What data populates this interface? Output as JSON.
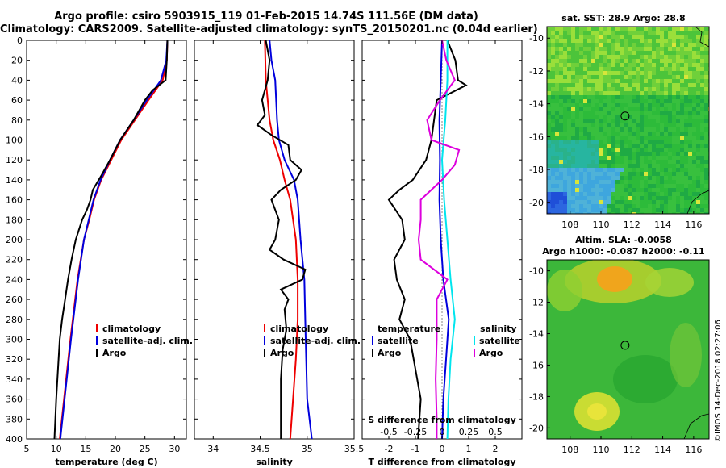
{
  "title_line1": "Argo profile: csiro 5903915_119 01-Feb-2015 14.74S 111.56E (DM data)",
  "title_line2": "Climatology: CARS2009. Satellite-adjusted climatology: synTS_20150201.nc (0.04d earlier)",
  "depth_ticks": [
    0,
    20,
    40,
    60,
    80,
    100,
    120,
    140,
    160,
    180,
    200,
    220,
    240,
    260,
    280,
    300,
    320,
    340,
    360,
    380,
    400
  ],
  "colors": {
    "climatology": "#ee0000",
    "satellite": "#0000dd",
    "argo": "#000000",
    "salinity_sat": "#00e5ee",
    "salinity_argo": "#dd00dd"
  },
  "chart_data": [
    {
      "type": "line",
      "name": "temperature-profile",
      "xlabel": "temperature (deg C)",
      "ylabel": "",
      "xlim": [
        5,
        32
      ],
      "ylim": [
        400,
        0
      ],
      "xticks": [
        5,
        10,
        15,
        20,
        25,
        30
      ],
      "legend": [
        "climatology",
        "satellite-adj. clim.",
        "Argo"
      ],
      "series": [
        {
          "name": "climatology",
          "depth": [
            0,
            20,
            40,
            60,
            80,
            100,
            120,
            140,
            160,
            180,
            200,
            240,
            300,
            400
          ],
          "values": [
            28.8,
            28.7,
            28.0,
            25.6,
            23.3,
            21.0,
            19.3,
            17.6,
            16.4,
            15.6,
            14.7,
            13.6,
            12.4,
            10.6
          ]
        },
        {
          "name": "satellite-adj. clim.",
          "depth": [
            0,
            20,
            40,
            60,
            80,
            100,
            120,
            140,
            160,
            180,
            200,
            240,
            300,
            400
          ],
          "values": [
            28.8,
            28.6,
            27.7,
            25.3,
            23.1,
            20.8,
            19.1,
            17.5,
            16.3,
            15.5,
            14.7,
            13.7,
            12.5,
            10.7
          ]
        },
        {
          "name": "Argo",
          "depth": [
            0,
            20,
            40,
            50,
            60,
            80,
            100,
            120,
            135,
            150,
            160,
            170,
            180,
            200,
            220,
            240,
            260,
            280,
            300,
            330,
            360,
            400
          ],
          "values": [
            28.8,
            28.7,
            28.5,
            26.3,
            25.0,
            23.1,
            20.8,
            19.1,
            17.7,
            16.2,
            15.8,
            15.2,
            14.4,
            13.3,
            12.6,
            12.0,
            11.5,
            11.0,
            10.6,
            10.3,
            10.0,
            9.7
          ]
        }
      ]
    },
    {
      "type": "line",
      "name": "salinity-profile",
      "xlabel": "salinity",
      "ylabel": "",
      "xlim": [
        33.8,
        35.5
      ],
      "ylim": [
        400,
        0
      ],
      "xticks": [
        34,
        34.5,
        35,
        35.5
      ],
      "legend": [
        "climatology",
        "satellite-adj. clim.",
        "Argo"
      ],
      "series": [
        {
          "name": "climatology",
          "depth": [
            0,
            40,
            80,
            100,
            120,
            140,
            160,
            200,
            240,
            280,
            320,
            360,
            400
          ],
          "values": [
            34.55,
            34.56,
            34.6,
            34.64,
            34.71,
            34.76,
            34.82,
            34.88,
            34.9,
            34.9,
            34.88,
            34.85,
            34.82
          ]
        },
        {
          "name": "satellite-adj. clim.",
          "depth": [
            0,
            20,
            40,
            80,
            100,
            120,
            140,
            160,
            200,
            240,
            280,
            320,
            360,
            400
          ],
          "values": [
            34.6,
            34.62,
            34.66,
            34.68,
            34.7,
            34.76,
            34.86,
            34.9,
            34.93,
            34.97,
            34.98,
            34.99,
            35.0,
            35.05
          ]
        },
        {
          "name": "Argo",
          "depth": [
            0,
            20,
            40,
            60,
            75,
            85,
            95,
            105,
            120,
            130,
            140,
            150,
            160,
            180,
            200,
            210,
            220,
            230,
            240,
            250,
            260,
            270,
            290,
            310,
            340,
            370,
            400
          ],
          "values": [
            34.56,
            34.6,
            34.58,
            34.52,
            34.55,
            34.47,
            34.62,
            34.8,
            34.82,
            34.94,
            34.88,
            34.72,
            34.62,
            34.7,
            34.66,
            34.6,
            34.75,
            34.98,
            34.95,
            34.72,
            34.8,
            34.76,
            34.78,
            34.74,
            34.72,
            34.72,
            34.72
          ]
        }
      ]
    },
    {
      "type": "line",
      "name": "difference-profile",
      "xlabel": "T difference from climatology",
      "top_xlabel": "S difference from climatology",
      "xlim": [
        -3,
        3
      ],
      "ylim": [
        400,
        0
      ],
      "xticks": [
        -2,
        -1,
        0,
        1,
        2
      ],
      "top_xticks": [
        "-0.5",
        "-0.25",
        "0",
        "0.25",
        "0.5"
      ],
      "legend_temperature_title": "temperature",
      "legend_salinity_title": "salinity",
      "legend": [
        "satellite",
        "Argo"
      ],
      "series": [
        {
          "name": "temperature satellite",
          "depth": [
            0,
            40,
            80,
            120,
            160,
            200,
            240,
            280,
            320,
            360,
            400
          ],
          "values": [
            0.0,
            -0.05,
            -0.1,
            -0.08,
            -0.1,
            -0.05,
            0.05,
            0.25,
            0.15,
            0.05,
            0.0
          ]
        },
        {
          "name": "temperature Argo",
          "depth": [
            0,
            20,
            40,
            45,
            60,
            80,
            100,
            120,
            140,
            150,
            160,
            180,
            200,
            220,
            240,
            260,
            280,
            300,
            330,
            360,
            400
          ],
          "values": [
            0.2,
            0.5,
            0.6,
            0.9,
            -0.2,
            -0.3,
            -0.4,
            -0.6,
            -1.1,
            -1.6,
            -2.0,
            -1.5,
            -1.4,
            -1.8,
            -1.7,
            -1.4,
            -1.6,
            -1.2,
            -1.0,
            -0.8,
            -0.9
          ]
        },
        {
          "name": "salinity satellite",
          "depth": [
            0,
            40,
            80,
            120,
            160,
            200,
            240,
            280,
            320,
            360,
            400
          ],
          "values": [
            0.05,
            0.05,
            0.03,
            0.0,
            0.02,
            0.05,
            0.08,
            0.12,
            0.08,
            0.06,
            0.05
          ]
        },
        {
          "name": "salinity Argo",
          "depth": [
            0,
            20,
            40,
            60,
            80,
            100,
            110,
            125,
            140,
            160,
            180,
            200,
            220,
            240,
            260,
            300,
            340,
            380,
            400
          ],
          "values": [
            0.0,
            0.04,
            0.12,
            -0.02,
            -0.14,
            -0.1,
            0.16,
            0.12,
            0.0,
            -0.2,
            -0.2,
            -0.22,
            -0.2,
            0.05,
            -0.05,
            -0.05,
            -0.06,
            -0.05,
            -0.05
          ]
        }
      ]
    },
    {
      "type": "heatmap",
      "name": "sst-map",
      "title": "sat. SST: 28.9 Argo: 28.8",
      "xticks": [
        "108",
        "110",
        "112",
        "114",
        "116"
      ],
      "yticks": [
        "-10",
        "-12",
        "-14",
        "-16",
        "-18",
        "-20"
      ],
      "xlim": [
        106.5,
        117
      ],
      "ylim": [
        -20.7,
        -9.3
      ],
      "argo_position": {
        "lon": 111.56,
        "lat": -14.74
      }
    },
    {
      "type": "heatmap",
      "name": "sla-map",
      "title_line1": "Altim. SLA: -0.0058",
      "title_line2": "Argo h1000: -0.087 h2000: -0.11",
      "xticks": [
        "108",
        "110",
        "112",
        "114",
        "116"
      ],
      "yticks": [
        "-10",
        "-12",
        "-14",
        "-16",
        "-18",
        "-20"
      ],
      "xlim": [
        106.5,
        117
      ],
      "ylim": [
        -20.7,
        -9.3
      ],
      "argo_position": {
        "lon": 111.56,
        "lat": -14.74
      }
    }
  ],
  "watermark": "©IMOS 14-Dec-2018 02:27:06"
}
